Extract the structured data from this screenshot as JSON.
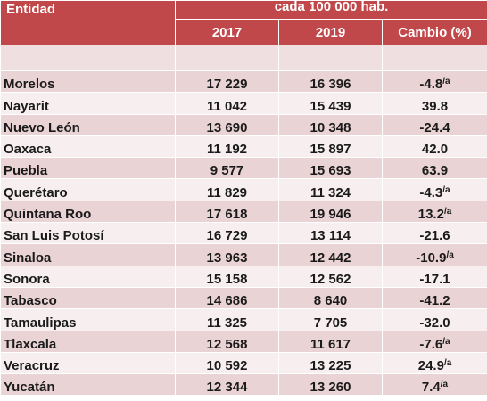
{
  "header": {
    "entity_label": "Entidad",
    "group_label": "cada 100 000 hab.",
    "columns": [
      "2017",
      "2019",
      "Cambio (%)"
    ]
  },
  "rows": [
    {
      "entidad": "Morelos",
      "y2017": "17 229",
      "y2019": "16 396",
      "cambio": "-4.8",
      "note": "/a"
    },
    {
      "entidad": "Nayarit",
      "y2017": "11 042",
      "y2019": "15 439",
      "cambio": "39.8",
      "note": ""
    },
    {
      "entidad": "Nuevo León",
      "y2017": "13 690",
      "y2019": "10 348",
      "cambio": "-24.4",
      "note": ""
    },
    {
      "entidad": "Oaxaca",
      "y2017": "11 192",
      "y2019": "15 897",
      "cambio": "42.0",
      "note": ""
    },
    {
      "entidad": "Puebla",
      "y2017": "9 577",
      "y2019": "15 693",
      "cambio": "63.9",
      "note": ""
    },
    {
      "entidad": "Querétaro",
      "y2017": "11 829",
      "y2019": "11 324",
      "cambio": "-4.3",
      "note": "/a"
    },
    {
      "entidad": "Quintana Roo",
      "y2017": "17 618",
      "y2019": "19 946",
      "cambio": "13.2",
      "note": "/a"
    },
    {
      "entidad": "San Luis Potosí",
      "y2017": "16 729",
      "y2019": "13 114",
      "cambio": "-21.6",
      "note": ""
    },
    {
      "entidad": "Sinaloa",
      "y2017": "13 963",
      "y2019": "12 442",
      "cambio": "-10.9",
      "note": "/a"
    },
    {
      "entidad": "Sonora",
      "y2017": "15 158",
      "y2019": "12 562",
      "cambio": "-17.1",
      "note": ""
    },
    {
      "entidad": "Tabasco",
      "y2017": "14 686",
      "y2019": "8 640",
      "cambio": "-41.2",
      "note": ""
    },
    {
      "entidad": "Tamaulipas",
      "y2017": "11 325",
      "y2019": "7 705",
      "cambio": "-32.0",
      "note": ""
    },
    {
      "entidad": "Tlaxcala",
      "y2017": "12 568",
      "y2019": "11 617",
      "cambio": "-7.6",
      "note": "/a"
    },
    {
      "entidad": "Veracruz",
      "y2017": "10 592",
      "y2019": "13 225",
      "cambio": "24.9",
      "note": "/a"
    },
    {
      "entidad": "Yucatán",
      "y2017": "12 344",
      "y2019": "13 260",
      "cambio": "7.4",
      "note": "/a"
    }
  ],
  "colors": {
    "header_bg": "#c0484a",
    "row_light": "#f7eeef",
    "row_dark": "#ead3d5"
  }
}
